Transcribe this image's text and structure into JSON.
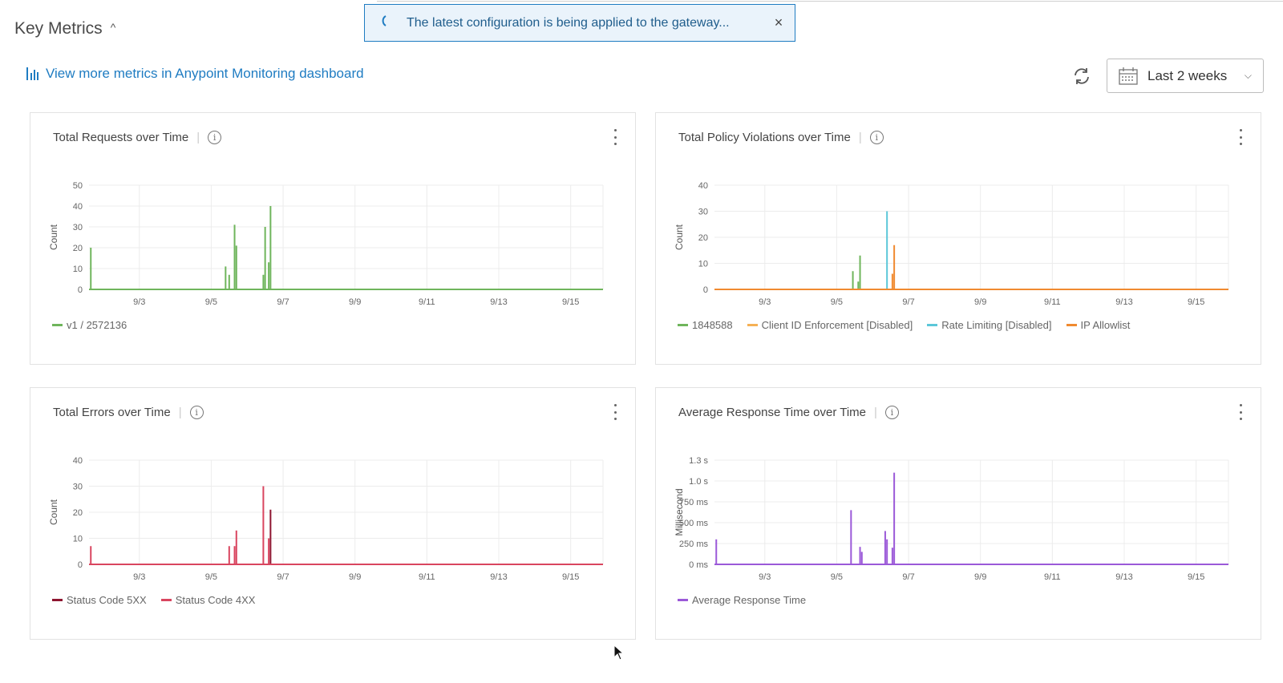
{
  "header": {
    "title": "Key Metrics",
    "caret": "^"
  },
  "toast": {
    "message": "The latest configuration is being applied to the gateway...",
    "close": "×"
  },
  "link": {
    "label": "View more metrics in Anypoint Monitoring dashboard"
  },
  "range": {
    "label": "Last 2 weeks",
    "chevron": "⌵"
  },
  "colors": {
    "accent": "#1f7cc2",
    "green": "#6fb55c",
    "orange": "#f08a30",
    "teal": "#5cc7d9",
    "red": "#d9455f",
    "darkred": "#8e1530",
    "purple": "#9b59d8"
  },
  "cards": [
    {
      "title": "Total Requests over Time",
      "legend": [
        {
          "name": "v1 / 2572136",
          "color": "#6fb55c"
        }
      ]
    },
    {
      "title": "Total Policy Violations over Time",
      "legend": [
        {
          "name": "1848588",
          "color": "#6fb55c"
        },
        {
          "name": "Client ID Enforcement [Disabled]",
          "color": "#f5b155"
        },
        {
          "name": "Rate Limiting [Disabled]",
          "color": "#5cc7d9"
        },
        {
          "name": "IP Allowlist",
          "color": "#f08a30"
        }
      ]
    },
    {
      "title": "Total Errors over Time",
      "legend": [
        {
          "name": "Status Code 5XX",
          "color": "#8e1530"
        },
        {
          "name": "Status Code 4XX",
          "color": "#d9455f"
        }
      ]
    },
    {
      "title": "Average Response Time over Time",
      "legend": [
        {
          "name": "Average Response Time",
          "color": "#9b59d8"
        }
      ]
    }
  ],
  "chart_data": [
    {
      "type": "bar",
      "ylabel": "Count",
      "ylim": [
        0,
        50
      ],
      "yticks": [
        "0",
        "10",
        "20",
        "30",
        "40",
        "50"
      ],
      "xlim": [
        1.6,
        15.9
      ],
      "xticks": [
        "9/3",
        "9/5",
        "9/7",
        "9/9",
        "9/11",
        "9/13",
        "9/15"
      ],
      "grid": true,
      "series": [
        {
          "name": "v1 / 2572136",
          "color": "#6fb55c",
          "points": [
            [
              1.65,
              20
            ],
            [
              5.4,
              11
            ],
            [
              5.5,
              7
            ],
            [
              5.65,
              31
            ],
            [
              5.7,
              21
            ],
            [
              6.45,
              7
            ],
            [
              6.5,
              30
            ],
            [
              6.6,
              13
            ],
            [
              6.65,
              40
            ]
          ]
        }
      ]
    },
    {
      "type": "bar",
      "ylabel": "Count",
      "ylim": [
        0,
        40
      ],
      "yticks": [
        "0",
        "10",
        "20",
        "30",
        "40"
      ],
      "xlim": [
        1.6,
        15.9
      ],
      "xticks": [
        "9/3",
        "9/5",
        "9/7",
        "9/9",
        "9/11",
        "9/13",
        "9/15"
      ],
      "grid": true,
      "series": [
        {
          "name": "1848588",
          "color": "#6fb55c",
          "points": [
            [
              5.45,
              7
            ],
            [
              5.6,
              3
            ],
            [
              5.65,
              13
            ]
          ]
        },
        {
          "name": "Client ID Enforcement [Disabled]",
          "color": "#f5b155",
          "points": []
        },
        {
          "name": "Rate Limiting [Disabled]",
          "color": "#5cc7d9",
          "points": [
            [
              6.4,
              30
            ]
          ]
        },
        {
          "name": "IP Allowlist",
          "color": "#f08a30",
          "points": [
            [
              6.55,
              6
            ],
            [
              6.6,
              17
            ]
          ]
        }
      ]
    },
    {
      "type": "bar",
      "ylabel": "Count",
      "ylim": [
        0,
        40
      ],
      "yticks": [
        "0",
        "10",
        "20",
        "30",
        "40"
      ],
      "xlim": [
        1.6,
        15.9
      ],
      "xticks": [
        "9/3",
        "9/5",
        "9/7",
        "9/9",
        "9/11",
        "9/13",
        "9/15"
      ],
      "grid": true,
      "series": [
        {
          "name": "Status Code 5XX",
          "color": "#8e1530",
          "points": [
            [
              6.65,
              21
            ]
          ]
        },
        {
          "name": "Status Code 4XX",
          "color": "#d9455f",
          "points": [
            [
              1.65,
              7
            ],
            [
              5.5,
              7
            ],
            [
              5.65,
              7
            ],
            [
              5.7,
              13
            ],
            [
              6.45,
              30
            ],
            [
              6.6,
              10
            ]
          ]
        }
      ]
    },
    {
      "type": "bar",
      "ylabel": "Millisecond",
      "ylim": [
        0,
        1250
      ],
      "yticks": [
        "0 ms",
        "250 ms",
        "500 ms",
        "750 ms",
        "1.0 s",
        "1.3 s"
      ],
      "xlim": [
        1.6,
        15.9
      ],
      "xticks": [
        "9/3",
        "9/5",
        "9/7",
        "9/9",
        "9/11",
        "9/13",
        "9/15"
      ],
      "grid": true,
      "series": [
        {
          "name": "Average Response Time",
          "color": "#9b59d8",
          "points": [
            [
              1.65,
              300
            ],
            [
              5.4,
              650
            ],
            [
              5.65,
              210
            ],
            [
              5.7,
              150
            ],
            [
              6.35,
              400
            ],
            [
              6.4,
              300
            ],
            [
              6.55,
              200
            ],
            [
              6.6,
              1100
            ]
          ]
        }
      ]
    }
  ]
}
